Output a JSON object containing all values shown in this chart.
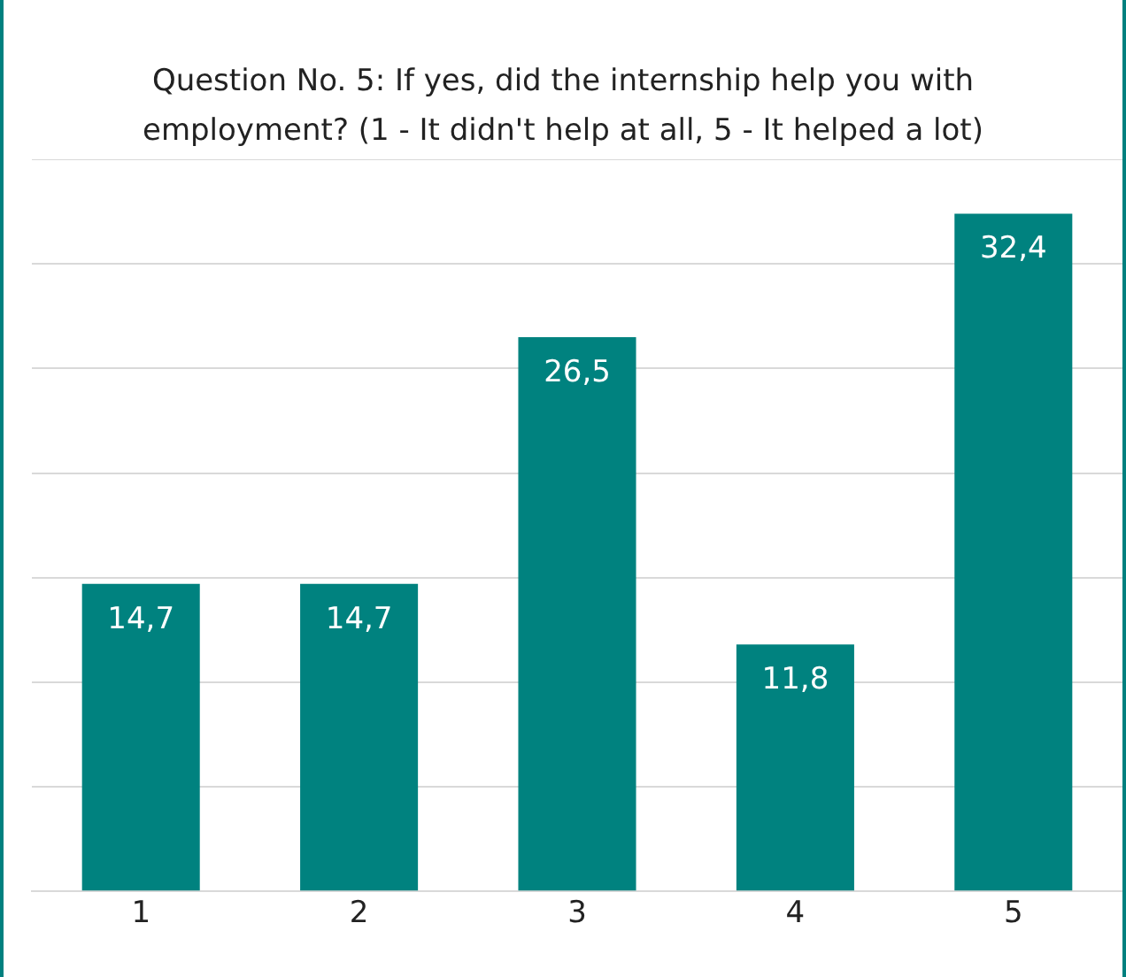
{
  "chart_data": {
    "type": "bar",
    "title": "Question No. 5: If yes, did the internship help you with employment? (1 - It didn't help at all, 5 - It helped a lot)",
    "categories": [
      "1",
      "2",
      "3",
      "4",
      "5"
    ],
    "values": [
      14.7,
      14.7,
      26.5,
      11.8,
      32.4
    ],
    "value_labels": [
      "14,7",
      "14,7",
      "26,5",
      "11,8",
      "32,4"
    ],
    "color": "#00827f",
    "ylim": [
      0,
      35
    ],
    "yticks": [
      {
        "value": 0,
        "label": null
      },
      {
        "value": 5,
        "label": null
      },
      {
        "value": 10,
        "label": null
      },
      {
        "value": 15,
        "label": null
      },
      {
        "value": 20,
        "label": null
      },
      {
        "value": 25,
        "label": null
      },
      {
        "value": 30,
        "label": null
      },
      {
        "value": 35,
        "label": null
      }
    ],
    "tick_labels": "x",
    "grid": "y",
    "legend": false
  }
}
